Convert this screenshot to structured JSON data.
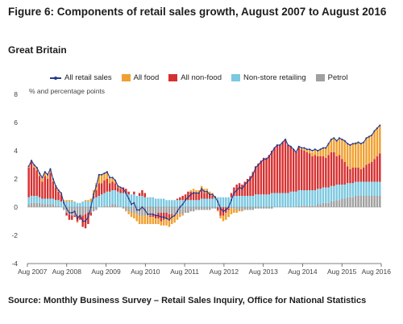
{
  "figure": {
    "title": "Figure 6: Components of retail sales growth, August 2007 to August 2016",
    "subtitle": "Great Britain",
    "unit_label": "% and percentage points",
    "source": "Source: Monthly Business Survey – Retail Sales Inquiry, Office for National Statistics"
  },
  "legend": {
    "all_retail": "All retail sales",
    "food": "All food",
    "non_food": "All non-food",
    "non_store": "Non-store retailing",
    "petrol": "Petrol"
  },
  "colors": {
    "all_retail": "#243a8c",
    "food": "#f0a030",
    "non_food": "#d63030",
    "non_store": "#7bc8e0",
    "petrol": "#a0a0a0"
  },
  "chart_data": {
    "type": "bar",
    "stacked": true,
    "title": "Figure 6: Components of retail sales growth, August 2007 to August 2016",
    "ylabel": "% and percentage points",
    "ylim": [
      -4,
      8
    ],
    "yticks": [
      -4,
      -2,
      0,
      2,
      4,
      6,
      8
    ],
    "x_tick_labels": [
      "Aug 2007",
      "Aug 2008",
      "Aug 2009",
      "Aug 2010",
      "Aug 2011",
      "Aug 2012",
      "Aug 2013",
      "Aug 2014",
      "Aug 2015",
      "Aug 2016"
    ],
    "legend_position": "top",
    "grid": false,
    "series": [
      {
        "name": "Petrol",
        "type": "bar",
        "values": [
          0.2,
          0.3,
          0.3,
          0.3,
          0.3,
          0.2,
          0.2,
          0.2,
          0.2,
          0.2,
          0.1,
          0.1,
          0.0,
          -0.2,
          -0.4,
          -0.5,
          -0.6,
          -0.6,
          -0.6,
          -0.6,
          -0.6,
          -0.5,
          -0.4,
          -0.4,
          -0.3,
          -0.2,
          0.0,
          0.0,
          0.1,
          0.1,
          0.1,
          0.2,
          0.2,
          0.1,
          0.0,
          -0.1,
          -0.2,
          -0.3,
          -0.4,
          -0.4,
          -0.5,
          -0.6,
          -0.6,
          -0.6,
          -0.6,
          -0.6,
          -0.5,
          -0.5,
          -0.4,
          -0.4,
          -0.4,
          -0.4,
          -0.5,
          -0.5,
          -0.5,
          -0.5,
          -0.5,
          -0.5,
          -0.4,
          -0.4,
          -0.3,
          -0.3,
          -0.2,
          -0.2,
          -0.2,
          -0.2,
          -0.2,
          -0.2,
          -0.1,
          -0.1,
          0.0,
          0.0,
          0.0,
          0.0,
          -0.1,
          -0.1,
          -0.1,
          -0.2,
          -0.2,
          -0.2,
          -0.2,
          -0.2,
          -0.2,
          -0.2,
          -0.1,
          -0.1,
          -0.1,
          -0.1,
          -0.1,
          -0.1,
          -0.1,
          0.0,
          0.0,
          0.0,
          0.0,
          0.0,
          0.0,
          0.0,
          0.0,
          0.0,
          0.1,
          0.1,
          0.1,
          0.1,
          0.1,
          0.1,
          0.1,
          0.2,
          0.2,
          0.3,
          0.3,
          0.3,
          0.4,
          0.4,
          0.5,
          0.5,
          0.6,
          0.6,
          0.7,
          0.7,
          0.7,
          0.8,
          0.8,
          0.8,
          0.8,
          0.8,
          0.8,
          0.8,
          0.8,
          0.8,
          0.8,
          0.8,
          0.8
        ]
      },
      {
        "name": "Non-store retailing",
        "type": "bar",
        "values": [
          0.5,
          0.5,
          0.5,
          0.5,
          0.4,
          0.4,
          0.4,
          0.4,
          0.4,
          0.4,
          0.4,
          0.4,
          0.4,
          0.4,
          0.4,
          0.4,
          0.4,
          0.4,
          0.3,
          0.3,
          0.4,
          0.4,
          0.4,
          0.4,
          0.6,
          0.7,
          0.8,
          0.9,
          0.9,
          1.0,
          1.0,
          1.0,
          1.0,
          1.0,
          1.0,
          1.0,
          1.0,
          0.9,
          0.9,
          0.9,
          0.8,
          0.8,
          0.8,
          0.7,
          0.7,
          0.7,
          0.7,
          0.6,
          0.6,
          0.6,
          0.6,
          0.5,
          0.5,
          0.5,
          0.5,
          0.5,
          0.5,
          0.5,
          0.5,
          0.5,
          0.5,
          0.5,
          0.5,
          0.5,
          0.6,
          0.6,
          0.6,
          0.6,
          0.6,
          0.7,
          0.7,
          0.7,
          0.7,
          0.7,
          0.7,
          0.7,
          0.8,
          0.8,
          0.8,
          0.8,
          0.8,
          0.8,
          0.8,
          0.8,
          0.9,
          0.9,
          0.9,
          0.9,
          0.9,
          0.9,
          1.0,
          1.0,
          1.0,
          1.0,
          1.0,
          1.0,
          1.0,
          1.1,
          1.1,
          1.1,
          1.1,
          1.1,
          1.1,
          1.1,
          1.1,
          1.1,
          1.1,
          1.1,
          1.1,
          1.1,
          1.1,
          1.1,
          1.1,
          1.1,
          1.1,
          1.1,
          1.0,
          1.0,
          1.0,
          1.0,
          1.0,
          1.0,
          1.0,
          1.0,
          1.0,
          1.0,
          1.0,
          1.0,
          1.0,
          1.0,
          1.0,
          1.0,
          1.0
        ]
      },
      {
        "name": "All non-food",
        "type": "bar",
        "values": [
          2.1,
          2.4,
          2.0,
          1.8,
          1.5,
          1.2,
          1.6,
          1.4,
          1.8,
          1.2,
          0.9,
          0.6,
          0.5,
          0.0,
          -0.2,
          -0.4,
          -0.3,
          -0.1,
          -0.4,
          -0.3,
          -0.8,
          -1.0,
          -0.8,
          -0.2,
          0.2,
          0.5,
          0.9,
          0.8,
          0.9,
          0.9,
          0.6,
          0.6,
          0.5,
          0.3,
          0.3,
          0.4,
          0.3,
          0.2,
          0.0,
          0.2,
          0.0,
          0.2,
          0.4,
          0.3,
          0.0,
          -0.1,
          -0.2,
          -0.3,
          -0.4,
          -0.6,
          -0.5,
          -0.4,
          -0.3,
          -0.1,
          0.0,
          0.1,
          0.2,
          0.3,
          0.4,
          0.6,
          0.6,
          0.6,
          0.5,
          0.5,
          0.6,
          0.4,
          0.4,
          0.3,
          0.2,
          0.0,
          -0.2,
          -0.6,
          -0.6,
          -0.4,
          -0.1,
          0.3,
          0.6,
          0.8,
          0.9,
          0.8,
          1.0,
          1.2,
          1.4,
          1.7,
          2.0,
          2.2,
          2.4,
          2.6,
          2.6,
          2.8,
          3.0,
          3.2,
          3.4,
          3.4,
          3.6,
          3.8,
          3.4,
          3.2,
          3.0,
          2.8,
          3.0,
          2.9,
          2.8,
          2.7,
          2.6,
          2.4,
          2.5,
          2.3,
          2.3,
          2.2,
          2.1,
          2.3,
          2.4,
          2.4,
          2.0,
          2.1,
          1.8,
          1.6,
          1.2,
          1.0,
          1.1,
          1.0,
          1.0,
          0.9,
          1.0,
          1.2,
          1.3,
          1.4,
          1.6,
          1.8,
          2.0
        ]
      },
      {
        "name": "All food",
        "type": "bar",
        "values": [
          0.1,
          0.1,
          0.2,
          0.2,
          0.2,
          0.3,
          0.3,
          0.3,
          0.3,
          0.2,
          0.1,
          0.1,
          0.1,
          0.1,
          0.1,
          0.1,
          0.1,
          0.0,
          -0.1,
          0.0,
          0.0,
          0.1,
          0.1,
          0.2,
          0.4,
          0.5,
          0.6,
          0.6,
          0.5,
          0.5,
          0.4,
          0.3,
          0.2,
          0.1,
          0.1,
          0.0,
          -0.1,
          -0.2,
          -0.3,
          -0.4,
          -0.5,
          -0.6,
          -0.6,
          -0.6,
          -0.6,
          -0.5,
          -0.5,
          -0.4,
          -0.4,
          -0.3,
          -0.4,
          -0.5,
          -0.6,
          -0.6,
          -0.6,
          -0.4,
          -0.2,
          -0.1,
          0.0,
          0.0,
          0.1,
          0.2,
          0.2,
          0.2,
          0.3,
          0.3,
          0.3,
          0.2,
          0.2,
          0.1,
          -0.1,
          -0.2,
          -0.4,
          -0.5,
          -0.5,
          -0.4,
          -0.3,
          -0.2,
          -0.1,
          -0.1,
          0.0,
          0.0,
          0.0,
          0.0,
          0.0,
          0.0,
          0.0,
          0.0,
          0.0,
          0.0,
          0.0,
          0.0,
          0.0,
          0.0,
          0.0,
          0.0,
          0.0,
          0.0,
          0.0,
          0.0,
          0.1,
          0.1,
          0.2,
          0.2,
          0.3,
          0.3,
          0.4,
          0.4,
          0.5,
          0.6,
          0.7,
          0.8,
          0.9,
          1.0,
          1.1,
          1.2,
          1.4,
          1.5,
          1.6,
          1.7,
          1.7,
          1.8,
          1.8,
          1.8,
          1.8,
          1.9,
          1.9,
          1.9,
          2.0,
          2.0,
          2.0
        ]
      },
      {
        "name": "All retail sales",
        "type": "line",
        "values": [
          2.9,
          3.3,
          3.0,
          2.8,
          2.4,
          2.1,
          2.5,
          2.3,
          2.7,
          2.0,
          1.5,
          1.2,
          1.0,
          0.3,
          -0.1,
          -0.4,
          -0.4,
          -0.3,
          -0.8,
          -0.6,
          -1.0,
          -1.0,
          -0.7,
          0.0,
          0.9,
          1.5,
          2.3,
          2.3,
          2.4,
          2.5,
          2.1,
          2.1,
          1.9,
          1.5,
          1.4,
          1.3,
          1.0,
          0.6,
          0.2,
          0.3,
          -0.2,
          -0.2,
          0.0,
          -0.2,
          -0.5,
          -0.5,
          -0.5,
          -0.6,
          -0.6,
          -0.7,
          -0.7,
          -0.8,
          -0.9,
          -0.7,
          -0.6,
          -0.3,
          0.0,
          0.2,
          0.5,
          0.7,
          0.9,
          1.0,
          1.0,
          1.0,
          1.3,
          1.1,
          1.1,
          0.9,
          0.9,
          0.7,
          0.4,
          -0.1,
          -0.3,
          -0.2,
          0.0,
          0.5,
          1.0,
          1.2,
          1.4,
          1.3,
          1.6,
          1.8,
          2.0,
          2.3,
          2.8,
          3.0,
          3.2,
          3.4,
          3.4,
          3.6,
          3.9,
          4.2,
          4.4,
          4.4,
          4.6,
          4.8,
          4.4,
          4.3,
          4.1,
          3.9,
          4.3,
          4.2,
          4.2,
          4.1,
          4.1,
          4.0,
          4.1,
          4.0,
          4.1,
          4.2,
          4.2,
          4.5,
          4.8,
          4.9,
          4.7,
          4.9,
          4.8,
          4.7,
          4.5,
          4.4,
          4.5,
          4.5,
          4.6,
          4.5,
          4.6,
          4.9,
          5.0,
          5.1,
          5.4,
          5.6,
          5.8
        ]
      }
    ]
  }
}
